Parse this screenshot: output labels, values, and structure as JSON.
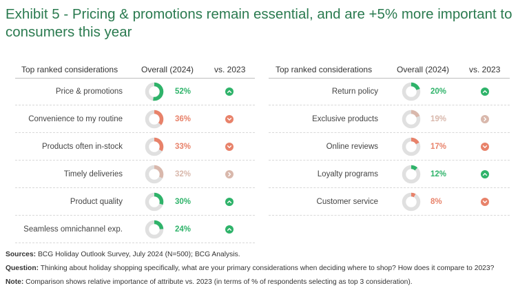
{
  "title": "Exhibit 5 - Pricing & promotions remain essential, and are +5% more important to consumers this year",
  "colors": {
    "up": "#2fb36a",
    "down": "#e8826a",
    "flat": "#d9b8ac",
    "ring": "#e0e0e0",
    "title": "#2a7a4f"
  },
  "chart_data": [
    {
      "type": "table",
      "headers": {
        "consideration": "Top ranked considerations",
        "overall": "Overall (2024)",
        "change": "vs. 2023"
      },
      "rows": [
        {
          "label": "Price & promotions",
          "value": 52,
          "display": "52%",
          "trend": "up"
        },
        {
          "label": "Convenience to my routine",
          "value": 36,
          "display": "36%",
          "trend": "down"
        },
        {
          "label": "Products often in-stock",
          "value": 33,
          "display": "33%",
          "trend": "down"
        },
        {
          "label": "Timely deliveries",
          "value": 32,
          "display": "32%",
          "trend": "flat"
        },
        {
          "label": "Product quality",
          "value": 30,
          "display": "30%",
          "trend": "up"
        },
        {
          "label": "Seamless omnichannel exp.",
          "value": 24,
          "display": "24%",
          "trend": "up"
        }
      ]
    },
    {
      "type": "table",
      "headers": {
        "consideration": "Top ranked considerations",
        "overall": "Overall (2024)",
        "change": "vs. 2023"
      },
      "rows": [
        {
          "label": "Return policy",
          "value": 20,
          "display": "20%",
          "trend": "up"
        },
        {
          "label": "Exclusive products",
          "value": 19,
          "display": "19%",
          "trend": "flat"
        },
        {
          "label": "Online reviews",
          "value": 17,
          "display": "17%",
          "trend": "down"
        },
        {
          "label": "Loyalty programs",
          "value": 12,
          "display": "12%",
          "trend": "up"
        },
        {
          "label": "Customer service",
          "value": 8,
          "display": "8%",
          "trend": "down"
        }
      ]
    }
  ],
  "footer": {
    "sources_label": "Sources:",
    "sources_text": " BCG Holiday Outlook Survey, July 2024 (N=500); BCG Analysis.",
    "question_label": "Question:",
    "question_text": " Thinking about holiday shopping specifically, what are your primary considerations when deciding where to shop? How does it compare to 2023?",
    "note_label": "Note:",
    "note_text": " Comparison shows relative importance of attribute vs. 2023 (in terms of % of respondents selecting as top 3 consideration)."
  }
}
